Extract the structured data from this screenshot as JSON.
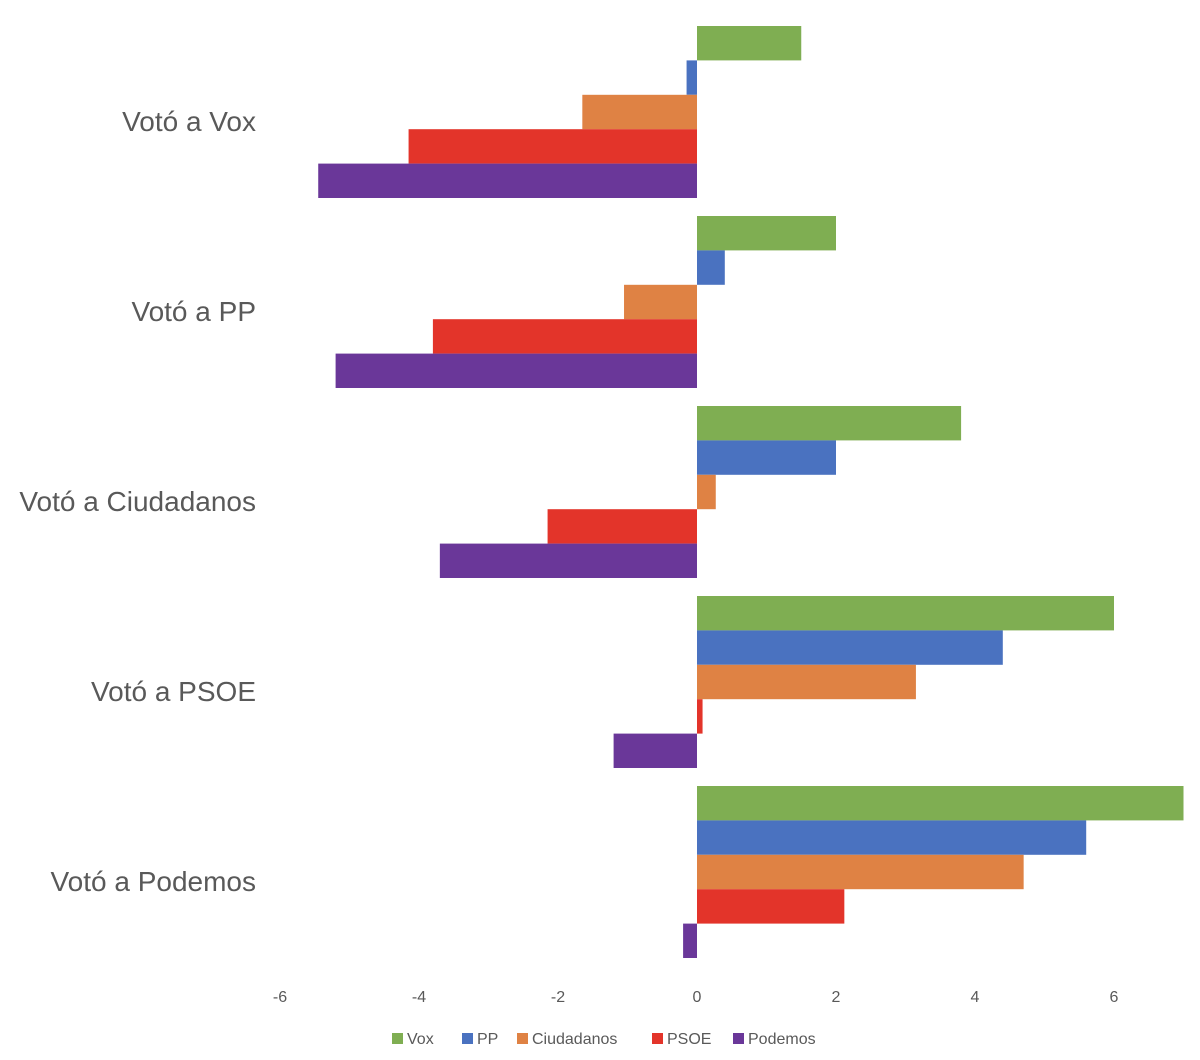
{
  "chart_data": {
    "type": "bar",
    "orientation": "horizontal",
    "categories": [
      "Votó a Vox",
      "Votó a PP",
      "Votó a Ciudadanos",
      "Votó a PSOE",
      "Votó a Podemos"
    ],
    "series": [
      {
        "name": "Vox",
        "color": "#7FAE52",
        "values": [
          1.5,
          2.0,
          3.8,
          6.0,
          7.0
        ]
      },
      {
        "name": "PP",
        "color": "#4A72C0",
        "values": [
          -0.15,
          0.4,
          2.0,
          4.4,
          5.6
        ]
      },
      {
        "name": "Ciudadanos",
        "color": "#DF8244",
        "values": [
          -1.65,
          -1.05,
          0.27,
          3.15,
          4.7
        ]
      },
      {
        "name": "PSOE",
        "color": "#E3342A",
        "values": [
          -4.15,
          -3.8,
          -2.15,
          0.08,
          2.12
        ]
      },
      {
        "name": "Podemos",
        "color": "#6A3799",
        "values": [
          -5.45,
          -5.2,
          -3.7,
          -1.2,
          -0.2
        ]
      }
    ],
    "xlim": [
      -6,
      7
    ],
    "xticks": [
      "-6",
      "-4",
      "-2",
      "0",
      "2",
      "4",
      "6"
    ],
    "legend_position": "bottom",
    "grid": false,
    "title": "",
    "xlabel": "",
    "ylabel": ""
  }
}
